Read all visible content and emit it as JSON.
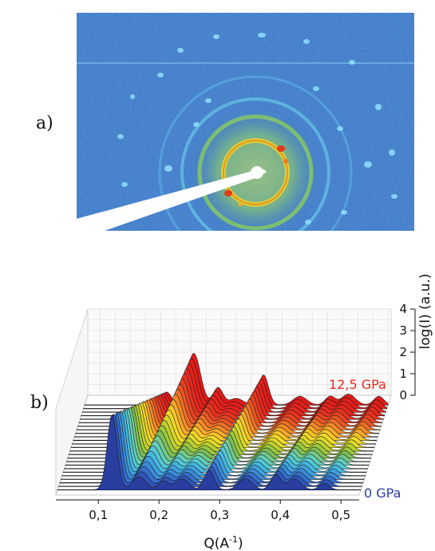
{
  "panels": {
    "a": "a)",
    "b": "b)"
  },
  "colors": {
    "diffraction_bg": "#2f6fc2",
    "high_pressure": "#e8281e",
    "low_pressure": "#2a3ea0"
  },
  "chart_data": {
    "type": "area",
    "subtype": "3d-waterfall",
    "xlabel": "Q(A",
    "xlabel_sup": "-1",
    "xlabel_close": ")",
    "ylabel": "log(I) (a.u.)",
    "xlim": [
      0.03,
      0.53
    ],
    "zlim": [
      0,
      4
    ],
    "x_ticks": [
      "0,1",
      "0,2",
      "0,3",
      "0,4",
      "0,5"
    ],
    "x_tick_values": [
      0.1,
      0.2,
      0.3,
      0.4,
      0.5
    ],
    "z_ticks": [
      "0",
      "1",
      "2",
      "3",
      "4"
    ],
    "z_tick_values": [
      0,
      1,
      2,
      3,
      4
    ],
    "grid": true,
    "series_labels": {
      "top": "12,5 GPa",
      "bottom": "0 GPa"
    },
    "pressure_range_gpa": [
      0,
      12.5
    ],
    "n_traces": 25,
    "peaks": [
      {
        "q": 0.12,
        "height_0GPa": 3.5,
        "height_12GPa": 0.6
      },
      {
        "q": 0.165,
        "height_0GPa": 0.6,
        "height_12GPa": 2.4
      },
      {
        "q": 0.205,
        "height_0GPa": 0.4,
        "height_12GPa": 0.8
      },
      {
        "q": 0.235,
        "height_0GPa": 0.5,
        "height_12GPa": 0.3
      },
      {
        "q": 0.28,
        "height_0GPa": 0.9,
        "height_12GPa": 1.4
      },
      {
        "q": 0.34,
        "height_0GPa": 0.5,
        "height_12GPa": 0.4
      },
      {
        "q": 0.39,
        "height_0GPa": 0.7,
        "height_12GPa": 0.4
      },
      {
        "q": 0.42,
        "height_0GPa": 0.5,
        "height_12GPa": 0.5
      },
      {
        "q": 0.47,
        "height_0GPa": 0.3,
        "height_12GPa": 0.4
      }
    ]
  }
}
